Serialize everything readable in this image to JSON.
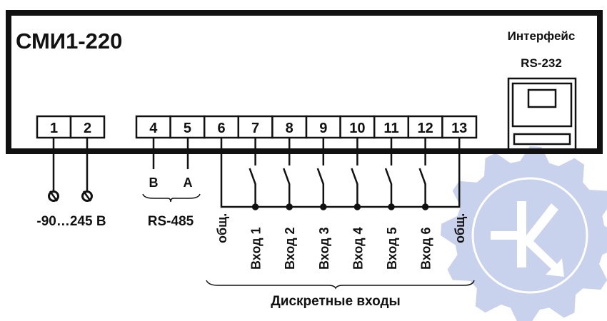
{
  "device": {
    "model": "СМИ1-220",
    "interface_label": "Интерфейс",
    "interface_name": "RS-232"
  },
  "power": {
    "terminals": [
      "1",
      "2"
    ],
    "label": "-90…245 В"
  },
  "rs485": {
    "terminals": [
      "4",
      "5"
    ],
    "pins": [
      "B",
      "A"
    ],
    "label": "RS-485"
  },
  "discrete": {
    "terminals": [
      "6",
      "7",
      "8",
      "9",
      "10",
      "11",
      "12",
      "13"
    ],
    "labels": [
      "общ.",
      "Вход 1",
      "Вход 2",
      "Вход 3",
      "Вход 4",
      "Вход 5",
      "Вход 6",
      "общ."
    ],
    "group_label": "Дискретные входы"
  },
  "watermark": {
    "type": "gear-logo",
    "color": "#c8d2ec"
  }
}
